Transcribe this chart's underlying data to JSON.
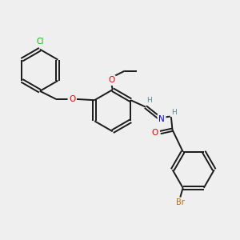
{
  "bg_color": "#efefef",
  "bond_color": "#1a1a1a",
  "atom_colors": {
    "Cl": "#00bb00",
    "O": "#ee0000",
    "N": "#0000dd",
    "H": "#558899",
    "Br": "#bb6600",
    "C": "#1a1a1a"
  },
  "figsize": [
    3.0,
    3.0
  ],
  "dpi": 100
}
